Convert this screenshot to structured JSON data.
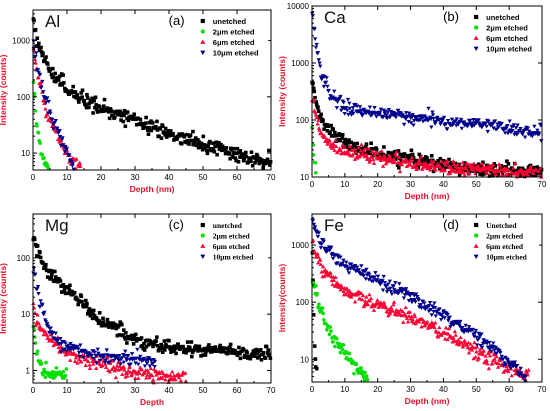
{
  "colors": {
    "unetched": "#000000",
    "etched_2": "#00e000",
    "etched_6": "#ff0033",
    "etched_10": "#00008b",
    "axis_title": "#e8112d"
  },
  "chart_data": [
    {
      "id": "a",
      "type": "scatter",
      "element": "Al",
      "panel_label": "(a)",
      "xlabel": "Depth (nm)",
      "ylabel": "Intensity (counts)",
      "xlim": [
        0,
        70
      ],
      "ylim": [
        5,
        3500
      ],
      "yscale": "log",
      "x_ticks": [
        0,
        10,
        20,
        30,
        40,
        50,
        60,
        70
      ],
      "y_ticks": [
        {
          "value": 10,
          "label": "10"
        },
        {
          "value": 100,
          "label": "100"
        },
        {
          "value": 1000,
          "label": "1000"
        }
      ],
      "legend": {
        "position": "top-right",
        "font": "sans"
      },
      "series": [
        {
          "name": "unetched",
          "marker": "square",
          "color_key": "unetched",
          "x_max": 70,
          "anchors": [
            [
              0.2,
              2200
            ],
            [
              1,
              1100
            ],
            [
              2,
              700
            ],
            [
              5,
              300
            ],
            [
              10,
              140
            ],
            [
              15,
              90
            ],
            [
              20,
              62
            ],
            [
              30,
              38
            ],
            [
              40,
              22
            ],
            [
              50,
              14
            ],
            [
              60,
              9
            ],
            [
              70,
              6.5
            ]
          ]
        },
        {
          "name": "2μm etched",
          "marker": "circle",
          "color_key": "etched_2",
          "x_max": 4.6,
          "anchors": [
            [
              0.2,
              200
            ],
            [
              0.5,
              90
            ],
            [
              1,
              40
            ],
            [
              2,
              15
            ],
            [
              3,
              8
            ],
            [
              4,
              6
            ],
            [
              4.6,
              5.5
            ]
          ]
        },
        {
          "name": "6μm etched",
          "marker": "triangle-up",
          "color_key": "etched_6",
          "x_max": 14,
          "anchors": [
            [
              0.2,
              700
            ],
            [
              1,
              300
            ],
            [
              3,
              90
            ],
            [
              5,
              40
            ],
            [
              8,
              16
            ],
            [
              11,
              8
            ],
            [
              14,
              5.5
            ]
          ]
        },
        {
          "name": "10μm etched",
          "marker": "triangle-down",
          "color_key": "etched_10",
          "x_max": 12,
          "anchors": [
            [
              0.2,
              900
            ],
            [
              1,
              400
            ],
            [
              3,
              120
            ],
            [
              5,
              50
            ],
            [
              8,
              20
            ],
            [
              10,
              10
            ],
            [
              12,
              6
            ]
          ]
        }
      ]
    },
    {
      "id": "b",
      "type": "scatter",
      "element": "Ca",
      "panel_label": "(b)",
      "xlabel": "Depth (nm)",
      "ylabel": "Intensity (counts)",
      "xlim": [
        0,
        70
      ],
      "ylim": [
        10,
        10000
      ],
      "yscale": "log",
      "x_ticks": [
        0,
        10,
        20,
        30,
        40,
        50,
        60,
        70
      ],
      "y_ticks": [
        {
          "value": 10,
          "label": "10"
        },
        {
          "value": 100,
          "label": "100"
        },
        {
          "value": 1000,
          "label": "1000"
        },
        {
          "value": 10000,
          "label": "10000"
        }
      ],
      "legend": {
        "position": "top-right",
        "font": "sans"
      },
      "series": [
        {
          "name": "unetched",
          "marker": "square",
          "color_key": "unetched",
          "x_max": 70,
          "anchors": [
            [
              0.2,
              500
            ],
            [
              1,
              220
            ],
            [
              3,
              110
            ],
            [
              6,
              60
            ],
            [
              10,
              40
            ],
            [
              20,
              26
            ],
            [
              30,
              20
            ],
            [
              40,
              16
            ],
            [
              50,
              14
            ],
            [
              60,
              13
            ],
            [
              70,
              12
            ]
          ]
        },
        {
          "name": "2μm etched",
          "marker": "circle",
          "color_key": "etched_2",
          "x_max": 1.2,
          "anchors": [
            [
              0.1,
              60
            ],
            [
              0.6,
              20
            ],
            [
              1.2,
              12
            ]
          ]
        },
        {
          "name": "6μm etched",
          "marker": "triangle-up",
          "color_key": "etched_6",
          "x_max": 70,
          "anchors": [
            [
              0.2,
              300
            ],
            [
              1,
              120
            ],
            [
              3,
              55
            ],
            [
              6,
              35
            ],
            [
              10,
              28
            ],
            [
              20,
              22
            ],
            [
              30,
              18
            ],
            [
              40,
              15
            ],
            [
              50,
              14
            ],
            [
              60,
              12
            ],
            [
              70,
              11
            ]
          ]
        },
        {
          "name": "10μm etched",
          "marker": "triangle-down",
          "color_key": "etched_10",
          "x_max": 70,
          "anchors": [
            [
              0.2,
              7000
            ],
            [
              1,
              2500
            ],
            [
              3,
              600
            ],
            [
              6,
              250
            ],
            [
              10,
              170
            ],
            [
              20,
              130
            ],
            [
              30,
              110
            ],
            [
              40,
              95
            ],
            [
              50,
              85
            ],
            [
              60,
              70
            ],
            [
              70,
              60
            ]
          ]
        }
      ]
    },
    {
      "id": "c",
      "type": "scatter",
      "element": "Mg",
      "panel_label": "(c)",
      "xlabel": "Depth",
      "ylabel": "Intensity (counts)",
      "xlim": [
        0,
        70
      ],
      "ylim": [
        0.6,
        600
      ],
      "yscale": "log",
      "x_ticks": [
        0,
        10,
        20,
        30,
        40,
        50,
        60,
        70
      ],
      "y_ticks": [
        {
          "value": 1,
          "label": "1"
        },
        {
          "value": 10,
          "label": "10"
        },
        {
          "value": 100,
          "label": "100"
        }
      ],
      "legend": {
        "position": "top-right",
        "font": "serif"
      },
      "series": [
        {
          "name": "unetched",
          "marker": "square",
          "color_key": "unetched",
          "x_max": 70,
          "anchors": [
            [
              0.2,
              250
            ],
            [
              1,
              150
            ],
            [
              3,
              80
            ],
            [
              5,
              50
            ],
            [
              10,
              28
            ],
            [
              15,
              15
            ],
            [
              20,
              8
            ],
            [
              25,
              5
            ],
            [
              30,
              3.5
            ],
            [
              40,
              2.6
            ],
            [
              50,
              2.3
            ],
            [
              60,
              2.1
            ],
            [
              70,
              2.0
            ]
          ]
        },
        {
          "name": "2μm etched",
          "marker": "circle",
          "color_key": "etched_2",
          "x_max": 10,
          "anchors": [
            [
              0.2,
              6
            ],
            [
              1,
              2
            ],
            [
              3,
              0.9
            ],
            [
              6,
              0.8
            ],
            [
              10,
              0.8
            ]
          ]
        },
        {
          "name": "6μm etched",
          "marker": "triangle-up",
          "color_key": "etched_6",
          "x_max": 45,
          "anchors": [
            [
              0.2,
              15
            ],
            [
              1,
              8
            ],
            [
              3,
              5
            ],
            [
              6,
              3
            ],
            [
              10,
              2
            ],
            [
              20,
              1.3
            ],
            [
              30,
              0.9
            ],
            [
              45,
              0.7
            ]
          ]
        },
        {
          "name": "10μm etched",
          "marker": "triangle-down",
          "color_key": "etched_10",
          "x_max": 36,
          "anchors": [
            [
              0.2,
              60
            ],
            [
              1,
              30
            ],
            [
              3,
              10
            ],
            [
              6,
              4
            ],
            [
              10,
              2.5
            ],
            [
              20,
              1.8
            ],
            [
              30,
              1.6
            ],
            [
              36,
              1.5
            ]
          ]
        }
      ]
    },
    {
      "id": "d",
      "type": "scatter",
      "element": "Fe",
      "panel_label": "(d)",
      "xlabel": "Depth (nm)",
      "ylabel": "Intensity(counts)",
      "xlim": [
        0,
        70
      ],
      "ylim": [
        4,
        3500
      ],
      "yscale": "log",
      "x_ticks": [
        0,
        10,
        20,
        30,
        40,
        50,
        60,
        70
      ],
      "y_ticks": [
        {
          "value": 10,
          "label": "10"
        },
        {
          "value": 100,
          "label": "100"
        },
        {
          "value": 1000,
          "label": "1000"
        }
      ],
      "legend": {
        "position": "top-right",
        "font": "serif"
      },
      "series": [
        {
          "name": "Unetched",
          "marker": "square",
          "color_key": "unetched",
          "x_max": 1.5,
          "anchors": [
            [
              0.1,
              1000
            ],
            [
              0.4,
              100
            ],
            [
              0.8,
              20
            ],
            [
              1.2,
              8
            ],
            [
              1.5,
              6
            ]
          ]
        },
        {
          "name": "2μm etched",
          "marker": "circle",
          "color_key": "etched_2",
          "x_max": 17,
          "anchors": [
            [
              0.2,
              250
            ],
            [
              1,
              150
            ],
            [
              3,
              60
            ],
            [
              6,
              25
            ],
            [
              10,
              12
            ],
            [
              14,
              7
            ],
            [
              17,
              5
            ]
          ]
        },
        {
          "name": "6μm etched",
          "marker": "triangle-up",
          "color_key": "etched_6",
          "x_max": 66,
          "anchors": [
            [
              0.2,
              1000
            ],
            [
              1,
              700
            ],
            [
              3,
              400
            ],
            [
              6,
              250
            ],
            [
              10,
              160
            ],
            [
              20,
              90
            ],
            [
              30,
              55
            ],
            [
              40,
              30
            ],
            [
              50,
              14
            ],
            [
              60,
              7
            ],
            [
              66,
              5
            ]
          ]
        },
        {
          "name": "10μm etched",
          "marker": "triangle-down",
          "color_key": "etched_10",
          "x_max": 65,
          "anchors": [
            [
              0.2,
              3000
            ],
            [
              1,
              1700
            ],
            [
              3,
              1000
            ],
            [
              6,
              700
            ],
            [
              10,
              450
            ],
            [
              20,
              250
            ],
            [
              30,
              130
            ],
            [
              40,
              60
            ],
            [
              50,
              25
            ],
            [
              60,
              9
            ],
            [
              65,
              5
            ]
          ]
        }
      ]
    }
  ]
}
